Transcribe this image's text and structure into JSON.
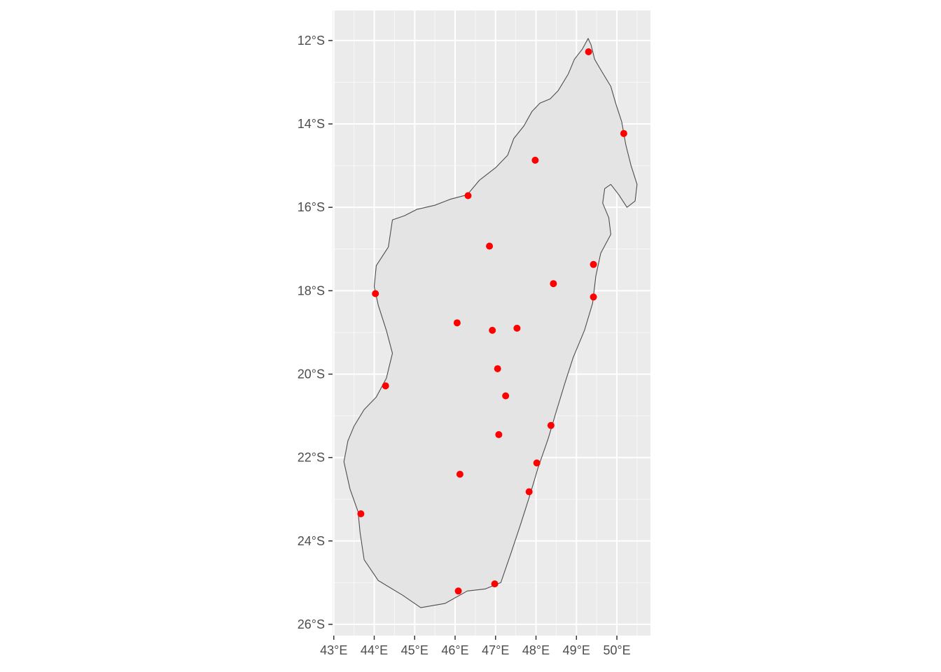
{
  "chart_data": {
    "type": "scatter",
    "title": "",
    "xlabel": "",
    "ylabel": "",
    "xlim": [
      42.97,
      50.83
    ],
    "ylim": [
      -26.27,
      -11.28
    ],
    "x_ticks": [
      43,
      44,
      45,
      46,
      47,
      48,
      49,
      50
    ],
    "x_tick_labels": [
      "43°E",
      "44°E",
      "45°E",
      "46°E",
      "47°E",
      "48°E",
      "49°E",
      "50°E"
    ],
    "y_ticks": [
      -12,
      -14,
      -16,
      -18,
      -20,
      -22,
      -24,
      -26
    ],
    "y_tick_labels": [
      "12°S",
      "14°S",
      "16°S",
      "18°S",
      "20°S",
      "22°S",
      "24°S",
      "26°S"
    ],
    "grid": true,
    "panel_background": "#ebebeb",
    "land_fill": "#e4e4e4",
    "land_outline": "#4d4d4d",
    "point_color": "#ff0000",
    "coastline": [
      [
        49.29,
        -11.95
      ],
      [
        49.36,
        -12.1
      ],
      [
        49.45,
        -12.45
      ],
      [
        49.6,
        -12.7
      ],
      [
        49.85,
        -13.1
      ],
      [
        49.97,
        -13.5
      ],
      [
        50.12,
        -13.95
      ],
      [
        50.22,
        -14.5
      ],
      [
        50.35,
        -15.0
      ],
      [
        50.5,
        -15.45
      ],
      [
        50.45,
        -15.85
      ],
      [
        50.25,
        -16.0
      ],
      [
        50.05,
        -15.7
      ],
      [
        49.85,
        -15.45
      ],
      [
        49.7,
        -15.55
      ],
      [
        49.65,
        -15.9
      ],
      [
        49.8,
        -16.25
      ],
      [
        49.85,
        -16.65
      ],
      [
        49.6,
        -17.1
      ],
      [
        49.48,
        -17.65
      ],
      [
        49.4,
        -18.3
      ],
      [
        49.2,
        -18.95
      ],
      [
        48.92,
        -19.6
      ],
      [
        48.72,
        -20.2
      ],
      [
        48.5,
        -20.9
      ],
      [
        48.3,
        -21.55
      ],
      [
        48.05,
        -22.25
      ],
      [
        47.85,
        -22.9
      ],
      [
        47.62,
        -23.6
      ],
      [
        47.38,
        -24.3
      ],
      [
        47.13,
        -25.0
      ],
      [
        46.75,
        -25.15
      ],
      [
        46.3,
        -25.2
      ],
      [
        45.75,
        -25.5
      ],
      [
        45.15,
        -25.6
      ],
      [
        44.7,
        -25.3
      ],
      [
        44.1,
        -24.95
      ],
      [
        43.75,
        -24.45
      ],
      [
        43.65,
        -23.8
      ],
      [
        43.6,
        -23.3
      ],
      [
        43.4,
        -22.75
      ],
      [
        43.25,
        -22.1
      ],
      [
        43.35,
        -21.6
      ],
      [
        43.5,
        -21.25
      ],
      [
        43.75,
        -20.85
      ],
      [
        44.05,
        -20.55
      ],
      [
        44.3,
        -20.1
      ],
      [
        44.45,
        -19.5
      ],
      [
        44.3,
        -18.95
      ],
      [
        44.1,
        -18.35
      ],
      [
        44.0,
        -17.9
      ],
      [
        44.05,
        -17.4
      ],
      [
        44.35,
        -16.95
      ],
      [
        44.45,
        -16.3
      ],
      [
        44.75,
        -16.2
      ],
      [
        45.05,
        -16.05
      ],
      [
        45.5,
        -15.95
      ],
      [
        45.9,
        -15.8
      ],
      [
        46.3,
        -15.7
      ],
      [
        46.6,
        -15.35
      ],
      [
        47.0,
        -15.05
      ],
      [
        47.3,
        -14.75
      ],
      [
        47.45,
        -14.35
      ],
      [
        47.7,
        -14.05
      ],
      [
        47.9,
        -13.7
      ],
      [
        48.1,
        -13.5
      ],
      [
        48.35,
        -13.4
      ],
      [
        48.55,
        -13.2
      ],
      [
        48.8,
        -12.8
      ],
      [
        48.95,
        -12.45
      ],
      [
        49.15,
        -12.2
      ],
      [
        49.29,
        -11.95
      ]
    ],
    "points": [
      {
        "lon": 49.3,
        "lat": -12.27
      },
      {
        "lon": 50.17,
        "lat": -14.23
      },
      {
        "lon": 47.98,
        "lat": -14.87
      },
      {
        "lon": 46.32,
        "lat": -15.72
      },
      {
        "lon": 46.85,
        "lat": -16.93
      },
      {
        "lon": 49.42,
        "lat": -17.37
      },
      {
        "lon": 48.43,
        "lat": -17.83
      },
      {
        "lon": 44.03,
        "lat": -18.07
      },
      {
        "lon": 49.42,
        "lat": -18.15
      },
      {
        "lon": 46.05,
        "lat": -18.77
      },
      {
        "lon": 47.53,
        "lat": -18.9
      },
      {
        "lon": 46.92,
        "lat": -18.95
      },
      {
        "lon": 47.05,
        "lat": -19.87
      },
      {
        "lon": 44.28,
        "lat": -20.28
      },
      {
        "lon": 47.25,
        "lat": -20.52
      },
      {
        "lon": 48.37,
        "lat": -21.23
      },
      {
        "lon": 47.08,
        "lat": -21.45
      },
      {
        "lon": 48.02,
        "lat": -22.13
      },
      {
        "lon": 46.12,
        "lat": -22.4
      },
      {
        "lon": 47.83,
        "lat": -22.82
      },
      {
        "lon": 43.67,
        "lat": -23.35
      },
      {
        "lon": 46.98,
        "lat": -25.03
      },
      {
        "lon": 46.08,
        "lat": -25.2
      }
    ]
  }
}
